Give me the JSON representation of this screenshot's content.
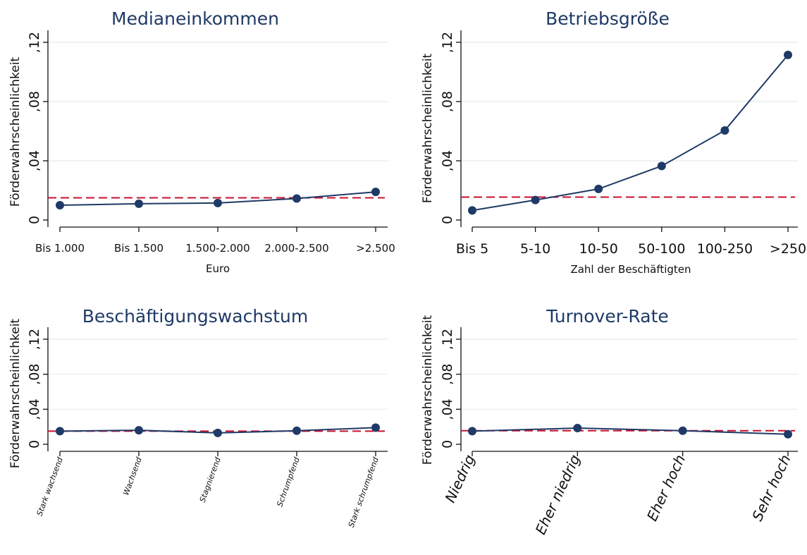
{
  "chart_data": [
    {
      "type": "line",
      "title": "Medianeinkommen",
      "xlabel": "Euro",
      "ylabel": "Förderwahrscheinlichkeit",
      "categories": [
        "Bis 1.000",
        "Bis 1.500",
        "1.500-2.000",
        "2.000-2.500",
        ">2.500"
      ],
      "values": [
        0.01,
        0.011,
        0.0115,
        0.0145,
        0.019
      ],
      "reference_line": 0.015,
      "ylim": [
        0,
        0.12
      ],
      "yticks": [
        "0",
        ",04",
        ",08",
        ",12"
      ],
      "grid": true,
      "colors": {
        "series": "#1f3a66",
        "reference": "#c8102e"
      }
    },
    {
      "type": "line",
      "title": "Betriebsgröße",
      "xlabel": "Zahl der Beschäftigten",
      "ylabel": "Förderwahrscheinlichkeit",
      "categories": [
        "Bis 5",
        "5-10",
        "10-50",
        "50-100",
        "100-250",
        ">250"
      ],
      "values": [
        0.0065,
        0.0135,
        0.021,
        0.0365,
        0.0605,
        0.1115
      ],
      "reference_line": 0.0155,
      "ylim": [
        0,
        0.12
      ],
      "yticks": [
        "0",
        ",04",
        ",08",
        ",12"
      ],
      "grid": true,
      "colors": {
        "series": "#1f3a66",
        "reference": "#c8102e"
      }
    },
    {
      "type": "line",
      "title": "Beschäftigungswachstum",
      "xlabel": "",
      "ylabel": "Förderwahrscheinlichkeit",
      "categories": [
        "Stark wachsend",
        "Wachsend",
        "Stagnierend",
        "Schrumpfend",
        "Stark schrumpfend"
      ],
      "values": [
        0.015,
        0.016,
        0.013,
        0.0155,
        0.019
      ],
      "reference_line": 0.015,
      "ylim": [
        0,
        0.12
      ],
      "yticks": [
        "0",
        ",04",
        ",08",
        ",12"
      ],
      "grid": true,
      "colors": {
        "series": "#1f3a66",
        "reference": "#c8102e"
      }
    },
    {
      "type": "line",
      "title": "Turnover-Rate",
      "xlabel": "",
      "ylabel": "Förderwahrscheinlichkeit",
      "categories": [
        "Niedrig",
        "Eher niedrig",
        "Eher hoch",
        "Sehr hoch"
      ],
      "values": [
        0.015,
        0.0185,
        0.0155,
        0.0115
      ],
      "reference_line": 0.0155,
      "ylim": [
        0,
        0.12
      ],
      "yticks": [
        "0",
        ",04",
        ",08",
        ",12"
      ],
      "grid": true,
      "colors": {
        "series": "#1f3a66",
        "reference": "#c8102e"
      }
    }
  ]
}
